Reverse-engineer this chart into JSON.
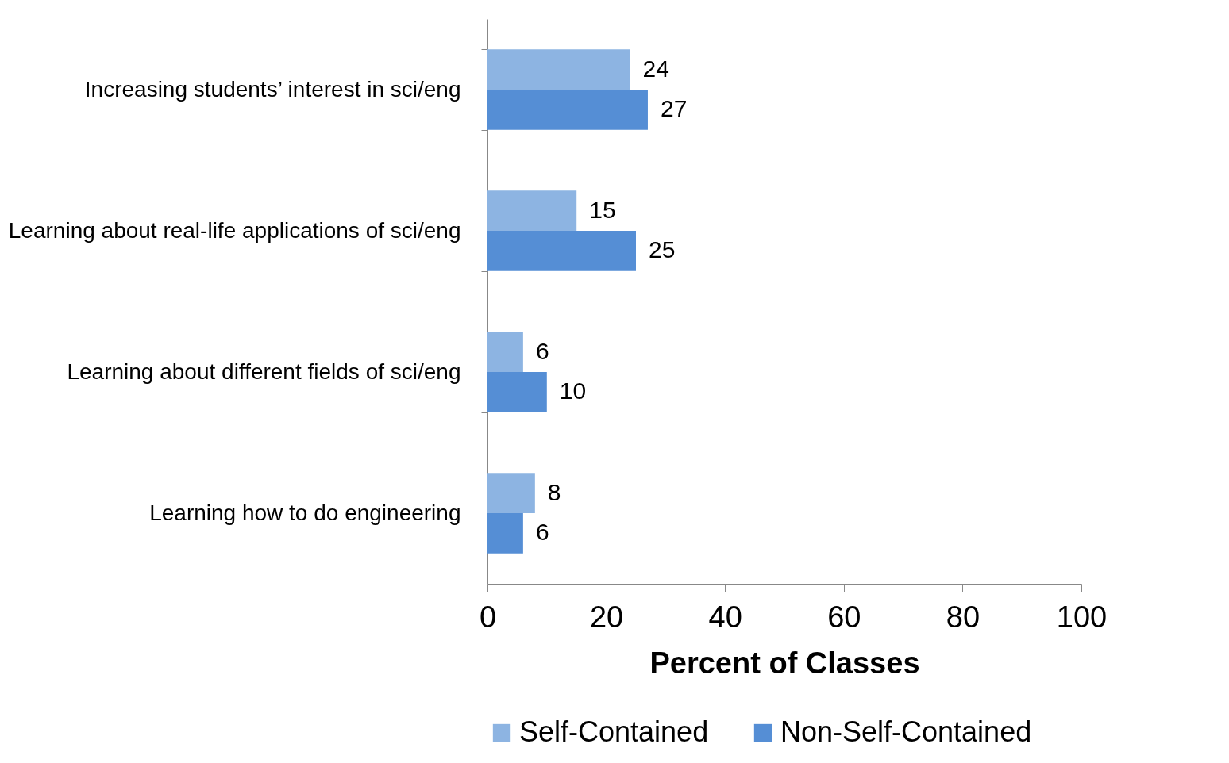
{
  "chart_data": {
    "type": "bar",
    "orientation": "horizontal",
    "categories": [
      "Increasing students’ interest in sci/eng",
      "Learning about real-life applications of sci/eng",
      "Learning about different fields of sci/eng",
      "Learning how to do engineering"
    ],
    "series": [
      {
        "name": "Self-Contained",
        "color": "#8db4e2",
        "values": [
          24,
          15,
          6,
          8
        ]
      },
      {
        "name": "Non-Self-Contained",
        "color": "#558ed5",
        "values": [
          27,
          25,
          10,
          6
        ]
      }
    ],
    "xlim": [
      0,
      100
    ],
    "xticks": [
      0,
      20,
      40,
      60,
      80,
      100
    ],
    "xlabel": "Percent of Classes",
    "legend": "bottom",
    "data_labels": true,
    "grid": false
  }
}
